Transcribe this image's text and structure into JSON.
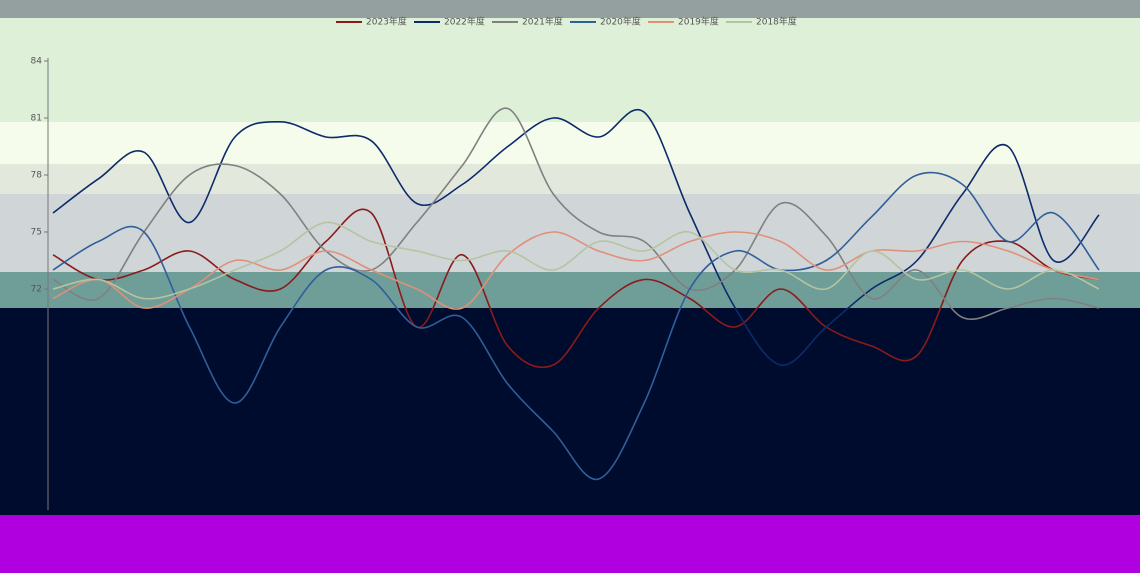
{
  "chart_data": {
    "type": "line",
    "categories": [
      null,
      null,
      null,
      null,
      null,
      null,
      null,
      null,
      null,
      null,
      null,
      null,
      null,
      null,
      null,
      null,
      null,
      null,
      null,
      null,
      null,
      null,
      null,
      null
    ],
    "ylim": [
      60,
      84
    ],
    "yticks": [
      72,
      75,
      78,
      81,
      84
    ],
    "legend": "top",
    "series": [
      {
        "name": "2023年度",
        "color": "#8b1a1a",
        "values": [
          73.8,
          72.5,
          73,
          74,
          72.5,
          72,
          74.5,
          76,
          70,
          73.8,
          69,
          68,
          71,
          72.5,
          71.5,
          70,
          72,
          70,
          69,
          68.5,
          73.5,
          74.5,
          73,
          72.5
        ]
      },
      {
        "name": "2022年度",
        "color": "#0d2b6b",
        "values": [
          76,
          77.8,
          79.2,
          75.5,
          80,
          80.8,
          80,
          79.8,
          76.5,
          77.5,
          79.5,
          81,
          80,
          81.3,
          76,
          71,
          68,
          70,
          72,
          73.5,
          77,
          79.5,
          73.5,
          75.9
        ]
      },
      {
        "name": "2021年度",
        "color": "#808080",
        "values": [
          72.5,
          71.5,
          75,
          78,
          78.5,
          77,
          74,
          73,
          75.5,
          78.5,
          81.5,
          77,
          75,
          74.5,
          72,
          73,
          76.5,
          74.8,
          71.5,
          73,
          70.5,
          71,
          71.5,
          71
        ]
      },
      {
        "name": "2020年度",
        "color": "#2f5f9a",
        "values": [
          73,
          74.5,
          75,
          70,
          66,
          70,
          73,
          72.5,
          70,
          70.5,
          67,
          64.5,
          62,
          66,
          72,
          74,
          73,
          73.5,
          75.8,
          78,
          77.5,
          74.5,
          76,
          73
        ]
      },
      {
        "name": "2019年度",
        "color": "#e0907a",
        "values": [
          71.5,
          72.5,
          71,
          72,
          73.5,
          73,
          74,
          73,
          72,
          71,
          73.8,
          75,
          74,
          73.5,
          74.5,
          75,
          74.5,
          73,
          74,
          74,
          74.5,
          74,
          73,
          72.5
        ]
      },
      {
        "name": "2018年度",
        "color": "#b5c4a0",
        "values": [
          72,
          72.5,
          71.5,
          72,
          73,
          74,
          75.5,
          74.5,
          74,
          73.5,
          74,
          73,
          74.5,
          74,
          75,
          73,
          73,
          72,
          74,
          72.5,
          73,
          72,
          73,
          72
        ]
      }
    ]
  }
}
